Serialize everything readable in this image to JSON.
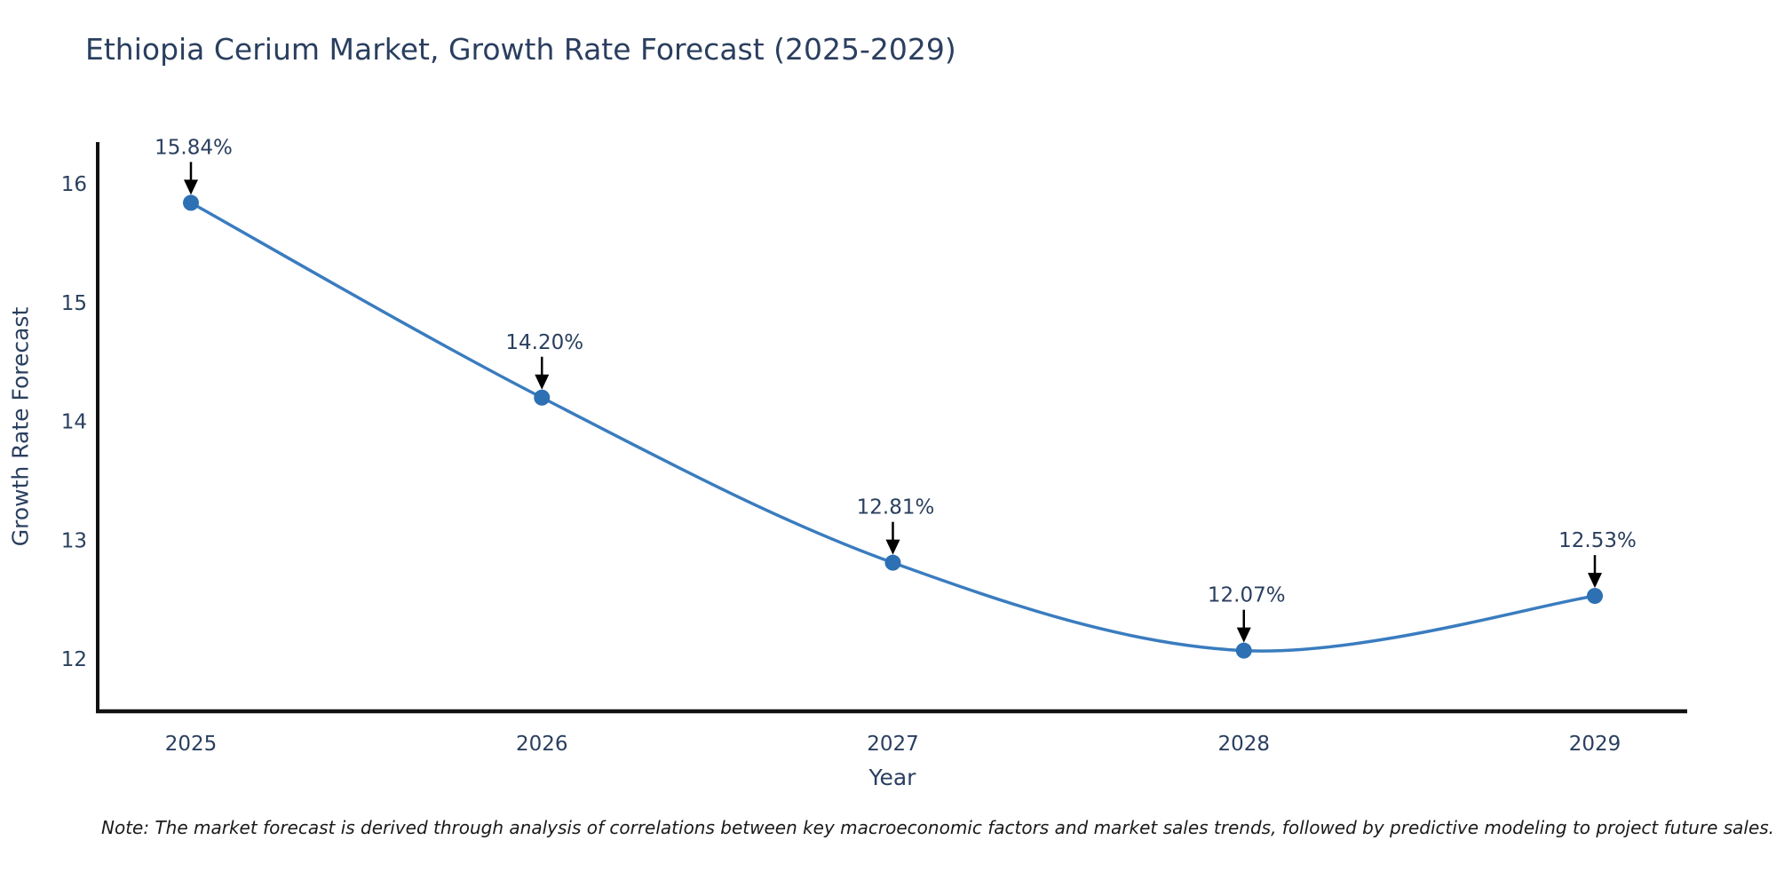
{
  "title": "Ethiopia Cerium Market, Growth Rate Forecast (2025-2029)",
  "note": "Note: The market forecast is derived through analysis of correlations between key macroeconomic factors and market sales trends, followed by predictive modeling to project future sales.",
  "chart_data": {
    "type": "line",
    "title": "Ethiopia Cerium Market, Growth Rate Forecast (2025-2029)",
    "xlabel": "Year",
    "ylabel": "Growth Rate Forecast",
    "x": [
      2025,
      2026,
      2027,
      2028,
      2029
    ],
    "values": [
      15.84,
      14.2,
      12.81,
      12.07,
      12.53
    ],
    "point_labels": [
      "15.84%",
      "14.20%",
      "12.81%",
      "12.07%",
      "12.53%"
    ],
    "x_tick_labels": [
      "2025",
      "2026",
      "2027",
      "2028",
      "2029"
    ],
    "yticks": [
      12,
      13,
      14,
      15,
      16
    ],
    "xlim": [
      2024.73,
      2029.26
    ],
    "ylim": [
      11.57,
      16.35
    ],
    "grid": false,
    "legend": "none",
    "smooth": true,
    "line_color": "#3a7cbf",
    "marker_color": "#2d70b3",
    "axis_color": "#111111",
    "text_color": "#2a3f5f",
    "annotation_arrow_color": "#000000"
  }
}
